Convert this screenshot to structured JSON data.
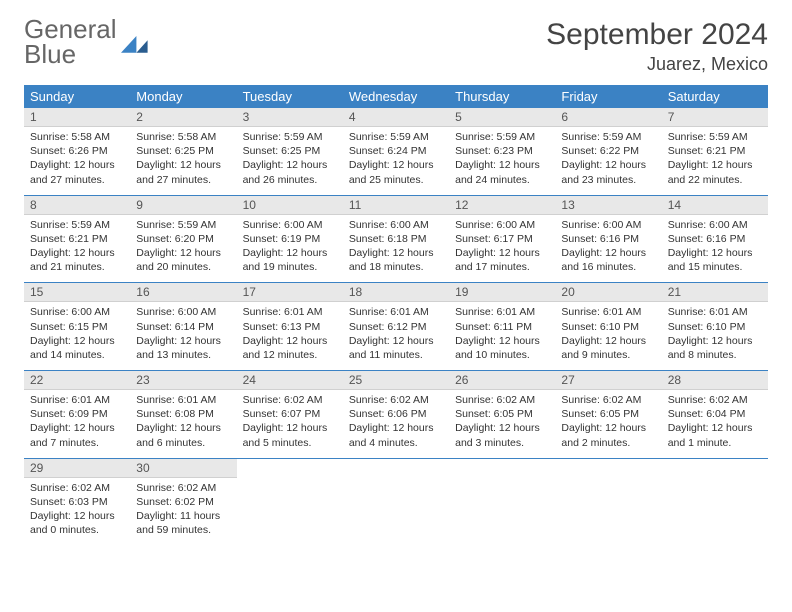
{
  "brand": {
    "word1": "General",
    "word2": "Blue"
  },
  "title": "September 2024",
  "location": "Juarez, Mexico",
  "colors": {
    "header_bg": "#3b82c4",
    "header_text": "#ffffff",
    "daynum_bg": "#e8e8e8",
    "row_divider": "#3b82c4",
    "page_bg": "#ffffff",
    "body_text": "#333333"
  },
  "typography": {
    "title_fontsize": 30,
    "location_fontsize": 18,
    "weekday_fontsize": 13,
    "daynum_fontsize": 12,
    "cell_fontsize": 10.5
  },
  "weekdays": [
    "Sunday",
    "Monday",
    "Tuesday",
    "Wednesday",
    "Thursday",
    "Friday",
    "Saturday"
  ],
  "days": [
    {
      "n": 1,
      "sunrise": "5:58 AM",
      "sunset": "6:26 PM",
      "dl_h": 12,
      "dl_m": 27
    },
    {
      "n": 2,
      "sunrise": "5:58 AM",
      "sunset": "6:25 PM",
      "dl_h": 12,
      "dl_m": 27
    },
    {
      "n": 3,
      "sunrise": "5:59 AM",
      "sunset": "6:25 PM",
      "dl_h": 12,
      "dl_m": 26
    },
    {
      "n": 4,
      "sunrise": "5:59 AM",
      "sunset": "6:24 PM",
      "dl_h": 12,
      "dl_m": 25
    },
    {
      "n": 5,
      "sunrise": "5:59 AM",
      "sunset": "6:23 PM",
      "dl_h": 12,
      "dl_m": 24
    },
    {
      "n": 6,
      "sunrise": "5:59 AM",
      "sunset": "6:22 PM",
      "dl_h": 12,
      "dl_m": 23
    },
    {
      "n": 7,
      "sunrise": "5:59 AM",
      "sunset": "6:21 PM",
      "dl_h": 12,
      "dl_m": 22
    },
    {
      "n": 8,
      "sunrise": "5:59 AM",
      "sunset": "6:21 PM",
      "dl_h": 12,
      "dl_m": 21
    },
    {
      "n": 9,
      "sunrise": "5:59 AM",
      "sunset": "6:20 PM",
      "dl_h": 12,
      "dl_m": 20
    },
    {
      "n": 10,
      "sunrise": "6:00 AM",
      "sunset": "6:19 PM",
      "dl_h": 12,
      "dl_m": 19
    },
    {
      "n": 11,
      "sunrise": "6:00 AM",
      "sunset": "6:18 PM",
      "dl_h": 12,
      "dl_m": 18
    },
    {
      "n": 12,
      "sunrise": "6:00 AM",
      "sunset": "6:17 PM",
      "dl_h": 12,
      "dl_m": 17
    },
    {
      "n": 13,
      "sunrise": "6:00 AM",
      "sunset": "6:16 PM",
      "dl_h": 12,
      "dl_m": 16
    },
    {
      "n": 14,
      "sunrise": "6:00 AM",
      "sunset": "6:16 PM",
      "dl_h": 12,
      "dl_m": 15
    },
    {
      "n": 15,
      "sunrise": "6:00 AM",
      "sunset": "6:15 PM",
      "dl_h": 12,
      "dl_m": 14
    },
    {
      "n": 16,
      "sunrise": "6:00 AM",
      "sunset": "6:14 PM",
      "dl_h": 12,
      "dl_m": 13
    },
    {
      "n": 17,
      "sunrise": "6:01 AM",
      "sunset": "6:13 PM",
      "dl_h": 12,
      "dl_m": 12
    },
    {
      "n": 18,
      "sunrise": "6:01 AM",
      "sunset": "6:12 PM",
      "dl_h": 12,
      "dl_m": 11
    },
    {
      "n": 19,
      "sunrise": "6:01 AM",
      "sunset": "6:11 PM",
      "dl_h": 12,
      "dl_m": 10
    },
    {
      "n": 20,
      "sunrise": "6:01 AM",
      "sunset": "6:10 PM",
      "dl_h": 12,
      "dl_m": 9
    },
    {
      "n": 21,
      "sunrise": "6:01 AM",
      "sunset": "6:10 PM",
      "dl_h": 12,
      "dl_m": 8
    },
    {
      "n": 22,
      "sunrise": "6:01 AM",
      "sunset": "6:09 PM",
      "dl_h": 12,
      "dl_m": 7
    },
    {
      "n": 23,
      "sunrise": "6:01 AM",
      "sunset": "6:08 PM",
      "dl_h": 12,
      "dl_m": 6
    },
    {
      "n": 24,
      "sunrise": "6:02 AM",
      "sunset": "6:07 PM",
      "dl_h": 12,
      "dl_m": 5
    },
    {
      "n": 25,
      "sunrise": "6:02 AM",
      "sunset": "6:06 PM",
      "dl_h": 12,
      "dl_m": 4
    },
    {
      "n": 26,
      "sunrise": "6:02 AM",
      "sunset": "6:05 PM",
      "dl_h": 12,
      "dl_m": 3
    },
    {
      "n": 27,
      "sunrise": "6:02 AM",
      "sunset": "6:05 PM",
      "dl_h": 12,
      "dl_m": 2
    },
    {
      "n": 28,
      "sunrise": "6:02 AM",
      "sunset": "6:04 PM",
      "dl_h": 12,
      "dl_m": 1
    },
    {
      "n": 29,
      "sunrise": "6:02 AM",
      "sunset": "6:03 PM",
      "dl_h": 12,
      "dl_m": 0
    },
    {
      "n": 30,
      "sunrise": "6:02 AM",
      "sunset": "6:02 PM",
      "dl_h": 11,
      "dl_m": 59
    }
  ],
  "labels": {
    "sunrise": "Sunrise:",
    "sunset": "Sunset:",
    "daylight_prefix": "Daylight:",
    "hours_word": "hours",
    "and_word": "and",
    "minutes_word": "minutes.",
    "minute_word": "minute."
  },
  "layout": {
    "first_weekday_index": 0,
    "rows": 5,
    "cols": 7
  }
}
